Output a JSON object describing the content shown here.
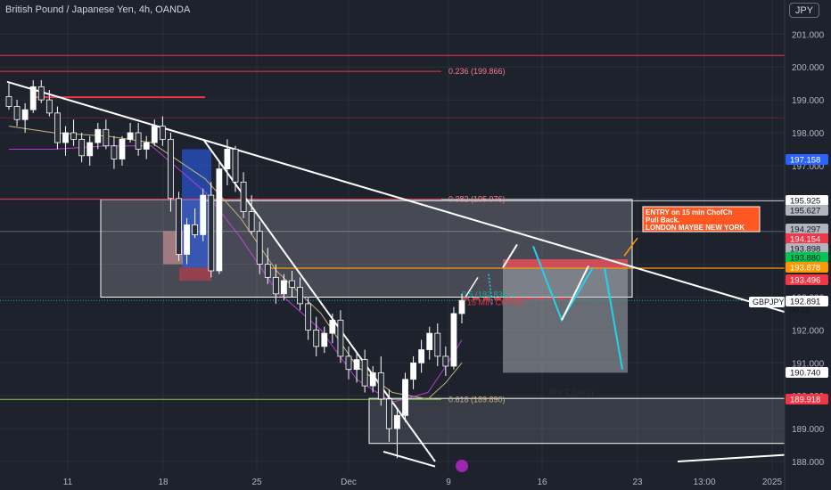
{
  "header": {
    "title": "British Pound / Japanese Yen, 4h, OANDA",
    "currency": "JPY"
  },
  "colors": {
    "background": "#1e222d",
    "bull_candle": "#ffffff",
    "bear_candle": "#2a2e39",
    "trendline": "#ffffff",
    "zone": "#b2b5be",
    "fib_line": "#f23645",
    "fib_618": "#8bc34a",
    "orange_line": "#ff9800",
    "cyan_arrow": "#22d3ee",
    "label_blue": "#2962ff",
    "label_red": "#f23645",
    "label_green": "#22ab94",
    "label_orange": "#ff9800",
    "label_white": "#ffffff"
  },
  "chart_data": {
    "type": "candlestick",
    "symbol": "GBPJPY",
    "timeframe": "4h",
    "ylim": [
      187.8,
      201.9
    ],
    "y_ticks": [
      188.0,
      189.0,
      190.0,
      191.0,
      192.0,
      193.0,
      194.0,
      195.0,
      196.0,
      197.0,
      198.0,
      199.0,
      200.0,
      201.0
    ],
    "y_tick_labels": [
      "188.000",
      "189.000",
      "190.000",
      "191.000",
      "192.000",
      "193.000",
      "194.000",
      "195.000",
      "196.000",
      "197.000",
      "198.000",
      "199.000",
      "200.000",
      "201.000"
    ],
    "x_labels": [
      "11",
      "18",
      "25",
      "Dec",
      "9",
      "16",
      "23",
      "13:00",
      "2025"
    ],
    "price_labels": [
      {
        "value": "197.158",
        "price": 197.158,
        "style": "blue"
      },
      {
        "value": "195.925",
        "price": 195.925,
        "style": "white"
      },
      {
        "value": "195.627",
        "price": 195.627,
        "style": "gray"
      },
      {
        "value": "194.297",
        "price": 194.297,
        "style": "gray"
      },
      {
        "value": "194.154",
        "price": 194.154,
        "style": "red"
      },
      {
        "value": "193.898",
        "price": 193.898,
        "style": "gray"
      },
      {
        "value": "193.880",
        "price": 193.88,
        "style": "green"
      },
      {
        "value": "193.878",
        "price": 193.878,
        "style": "orange"
      },
      {
        "value": "193.496",
        "price": 193.496,
        "style": "red"
      },
      {
        "value": "192.891",
        "price": 192.891,
        "style": "white"
      },
      {
        "value": "190.740",
        "price": 190.74,
        "style": "white"
      },
      {
        "value": "189.918",
        "price": 189.918,
        "style": "red"
      }
    ],
    "countdown": "00:02",
    "symbol_tag": "GBPJPY",
    "fib_levels": [
      {
        "label": "0.236 (199.866)",
        "price": 199.866
      },
      {
        "label": "0.382 (195.976)",
        "price": 195.976
      },
      {
        "label": "0.618 (189.890)",
        "price": 189.89
      }
    ],
    "annotations": {
      "entry_note": [
        "ENTRY on 15 min ChofCh",
        "Pull Back.",
        "LONDON MAYBE NEW YORK"
      ],
      "choch_4h": "4hr Choch",
      "choch_15m": "15 MIN CHOCH",
      "level_partial": "0.5 (192.830)"
    },
    "candles": [
      [
        199.1,
        199.5,
        198.7,
        198.8
      ],
      [
        198.8,
        199.0,
        198.2,
        198.4
      ],
      [
        198.4,
        198.9,
        198.0,
        198.7
      ],
      [
        198.7,
        199.6,
        198.6,
        199.4
      ],
      [
        199.4,
        199.6,
        198.9,
        199.0
      ],
      [
        199.0,
        199.3,
        198.5,
        198.6
      ],
      [
        198.6,
        198.8,
        197.5,
        197.7
      ],
      [
        197.7,
        198.2,
        197.3,
        198.0
      ],
      [
        198.0,
        198.4,
        197.6,
        197.8
      ],
      [
        197.8,
        198.0,
        197.1,
        197.3
      ],
      [
        197.3,
        197.9,
        197.0,
        197.7
      ],
      [
        197.7,
        198.3,
        197.5,
        198.1
      ],
      [
        198.1,
        198.4,
        197.5,
        197.6
      ],
      [
        197.6,
        197.9,
        196.9,
        197.2
      ],
      [
        197.2,
        197.9,
        197.0,
        197.8
      ],
      [
        197.8,
        198.3,
        197.7,
        198.0
      ],
      [
        198.0,
        198.3,
        197.3,
        197.5
      ],
      [
        197.5,
        197.9,
        197.2,
        197.7
      ],
      [
        197.7,
        198.4,
        197.6,
        198.2
      ],
      [
        198.2,
        198.5,
        197.6,
        197.8
      ],
      [
        197.8,
        198.0,
        195.6,
        196.0
      ],
      [
        196.0,
        196.2,
        194.1,
        194.3
      ],
      [
        194.3,
        195.4,
        194.0,
        195.2
      ],
      [
        195.2,
        195.7,
        194.8,
        194.9
      ],
      [
        194.9,
        196.3,
        194.7,
        196.1
      ],
      [
        196.1,
        196.5,
        193.6,
        193.8
      ],
      [
        193.8,
        197.1,
        193.7,
        196.9
      ],
      [
        196.9,
        197.8,
        196.4,
        197.5
      ],
      [
        197.5,
        197.6,
        196.2,
        196.5
      ],
      [
        196.5,
        196.8,
        195.4,
        195.6
      ],
      [
        195.6,
        196.1,
        194.9,
        195.0
      ],
      [
        195.0,
        195.3,
        193.7,
        194.0
      ],
      [
        194.0,
        194.5,
        193.4,
        193.6
      ],
      [
        193.6,
        194.0,
        192.8,
        193.1
      ],
      [
        193.1,
        193.7,
        192.9,
        193.5
      ],
      [
        193.5,
        193.8,
        193.0,
        193.3
      ],
      [
        193.3,
        193.6,
        192.6,
        192.8
      ],
      [
        192.8,
        193.0,
        191.7,
        192.0
      ],
      [
        192.0,
        192.4,
        191.2,
        191.5
      ],
      [
        191.5,
        192.1,
        191.3,
        191.9
      ],
      [
        191.9,
        192.5,
        191.6,
        192.3
      ],
      [
        192.3,
        192.6,
        191.0,
        191.2
      ],
      [
        191.2,
        191.5,
        190.5,
        190.8
      ],
      [
        190.8,
        191.3,
        190.4,
        191.1
      ],
      [
        191.1,
        191.4,
        190.1,
        190.3
      ],
      [
        190.3,
        190.9,
        190.1,
        190.7
      ],
      [
        190.7,
        191.2,
        189.7,
        189.9
      ],
      [
        189.9,
        190.2,
        188.6,
        189.0
      ],
      [
        189.0,
        189.6,
        188.1,
        189.4
      ],
      [
        189.4,
        190.7,
        189.2,
        190.5
      ],
      [
        190.5,
        191.2,
        190.2,
        191.0
      ],
      [
        191.0,
        191.7,
        190.7,
        191.4
      ],
      [
        191.4,
        192.1,
        191.1,
        191.9
      ],
      [
        191.9,
        192.2,
        190.9,
        191.2
      ],
      [
        191.2,
        191.5,
        190.6,
        190.9
      ],
      [
        190.9,
        192.7,
        190.8,
        192.5
      ],
      [
        192.5,
        193.1,
        192.2,
        192.9
      ]
    ]
  }
}
